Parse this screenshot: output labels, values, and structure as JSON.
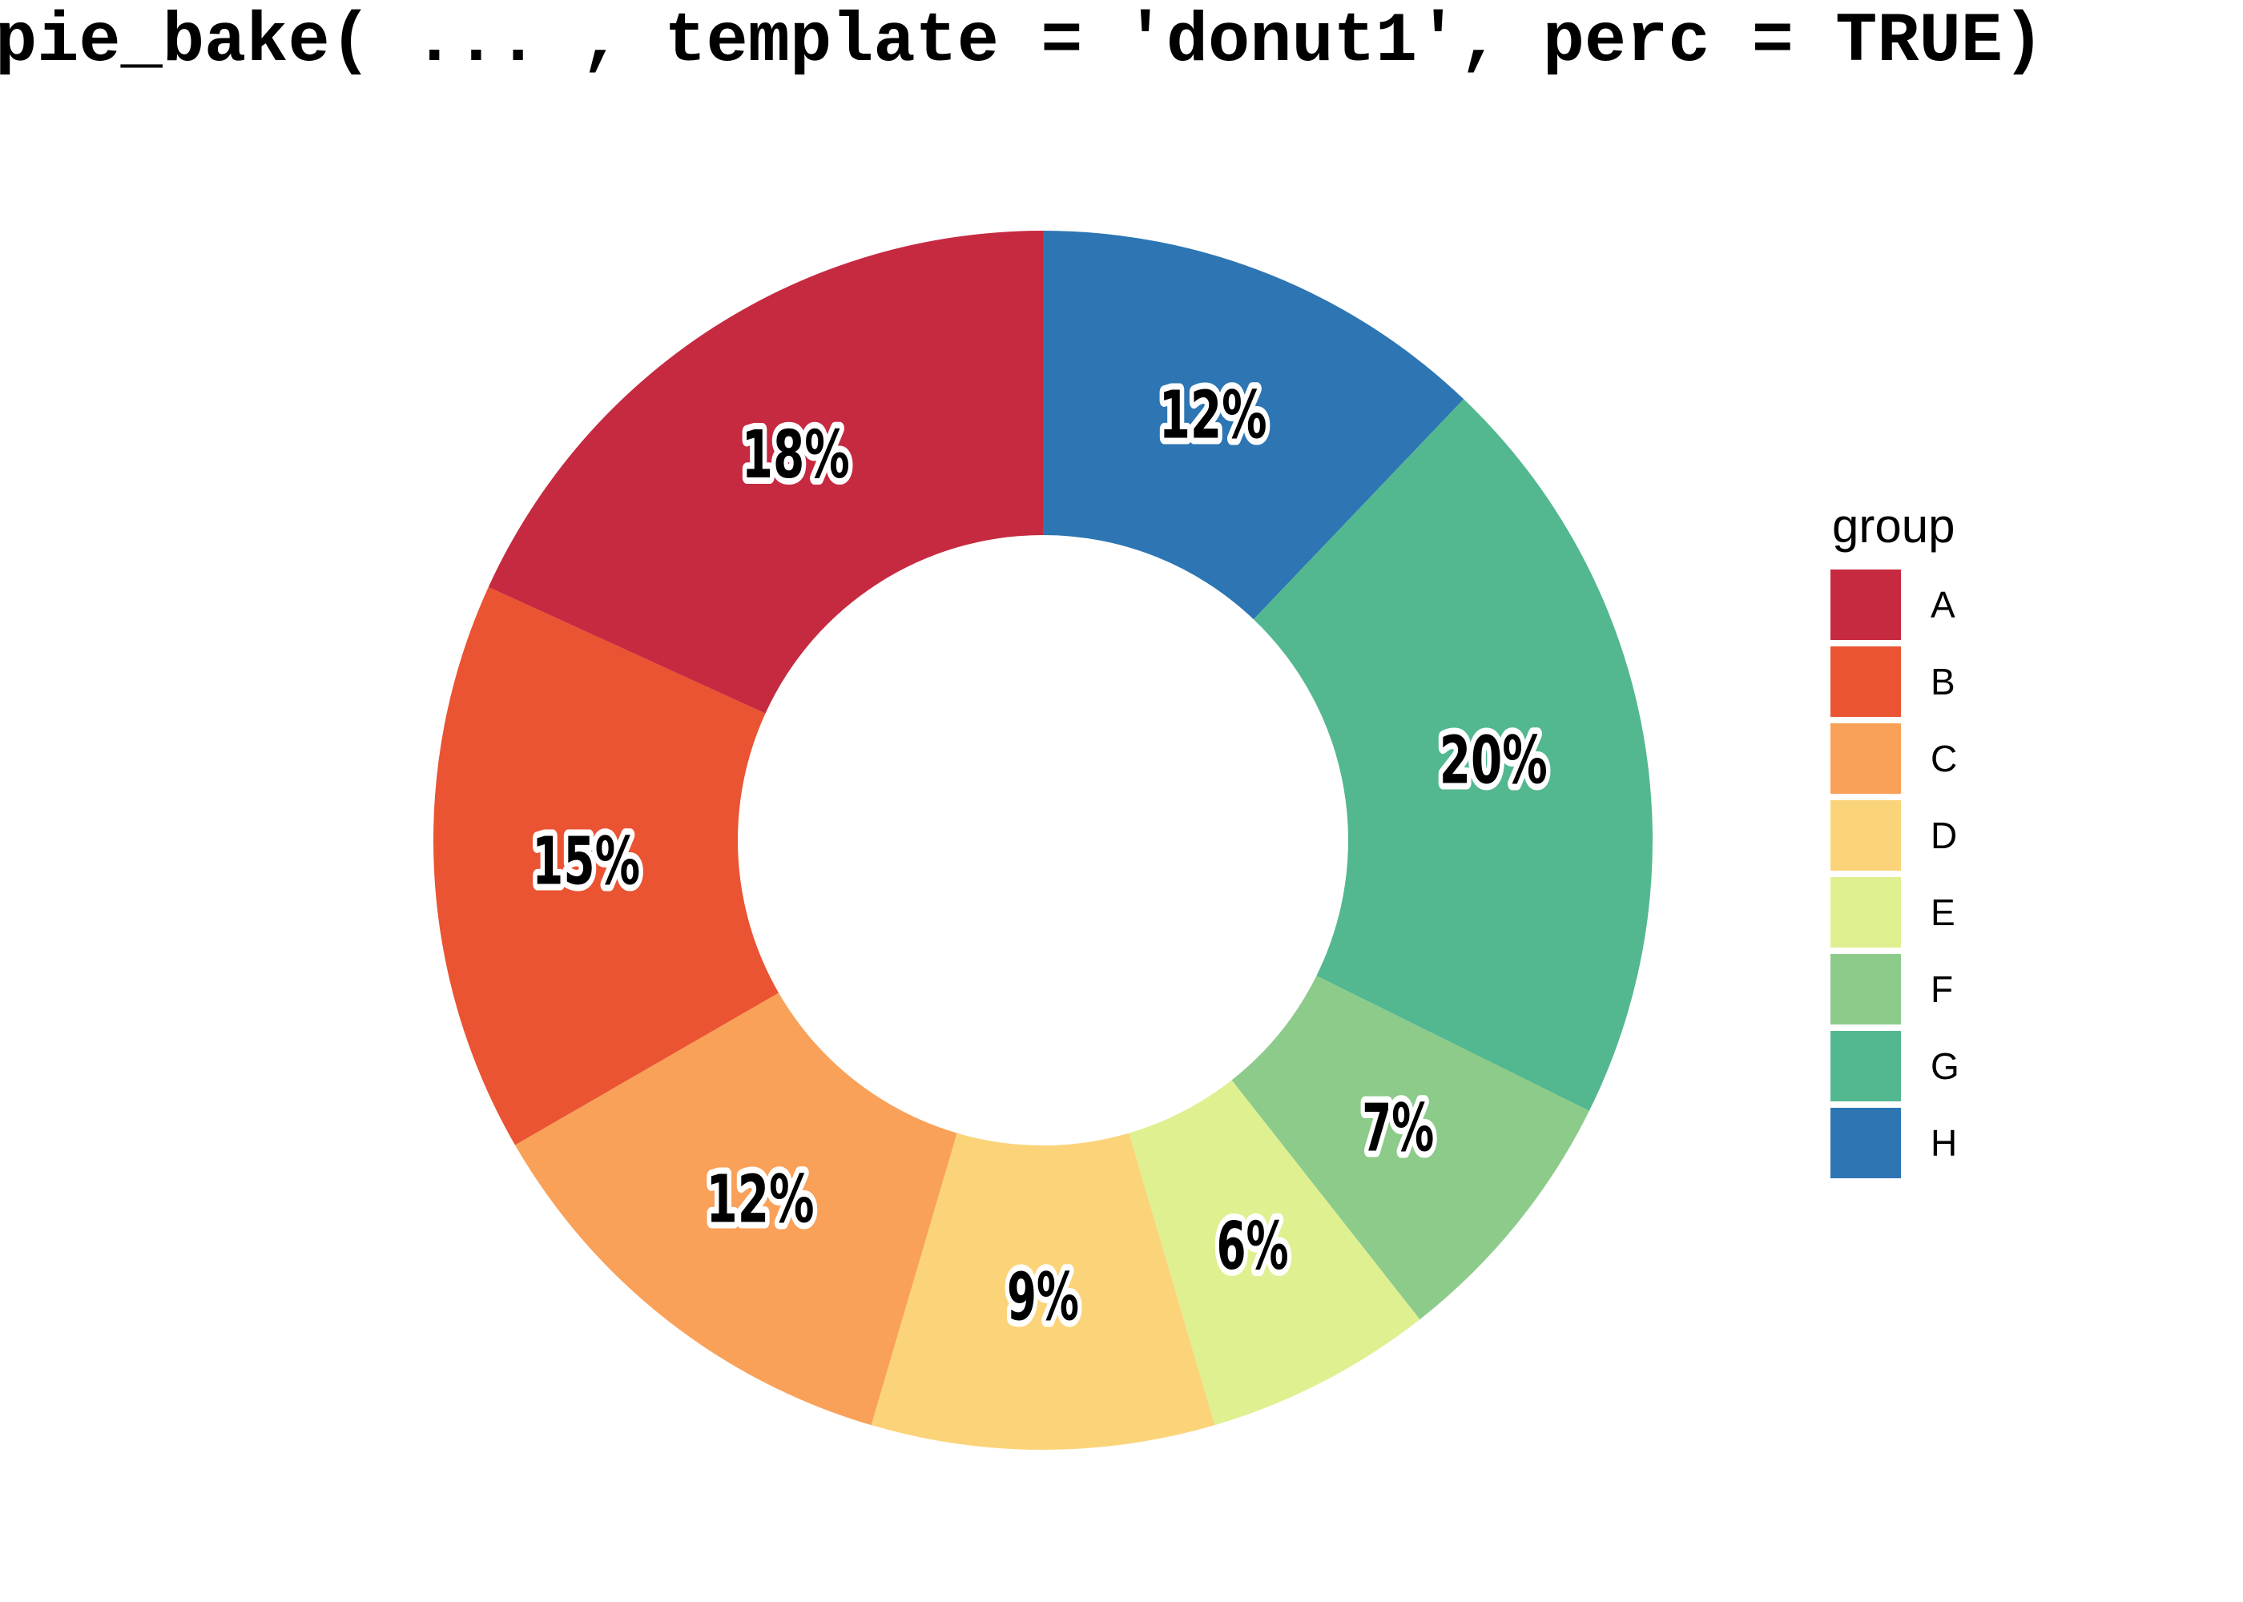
{
  "title": "pie_bake( ... , template = 'donut1', perc = TRUE)",
  "legend": {
    "title": "group"
  },
  "chart_data": {
    "type": "pie",
    "subtype": "donut",
    "title": "pie_bake( ... , template = 'donut1', perc = TRUE)",
    "categories": [
      "A",
      "B",
      "C",
      "D",
      "E",
      "F",
      "G",
      "H"
    ],
    "values": [
      18,
      15,
      12,
      9,
      6,
      7,
      20,
      12
    ],
    "labels": [
      "18%",
      "15%",
      "12%",
      "9%",
      "6%",
      "7%",
      "20%",
      "12%"
    ],
    "colors": [
      "#C62A40",
      "#EA5432",
      "#F9A159",
      "#FBD47A",
      "#DFF091",
      "#8DCB8B",
      "#53B88F",
      "#2D76B3"
    ],
    "label_color": "#000000",
    "label_outline_color": "#ffffff",
    "legend_title": "group",
    "legend_position": "right",
    "start_angle_deg": 0,
    "direction": "counterclockwise",
    "hole_ratio": 0.5,
    "grid": false
  }
}
